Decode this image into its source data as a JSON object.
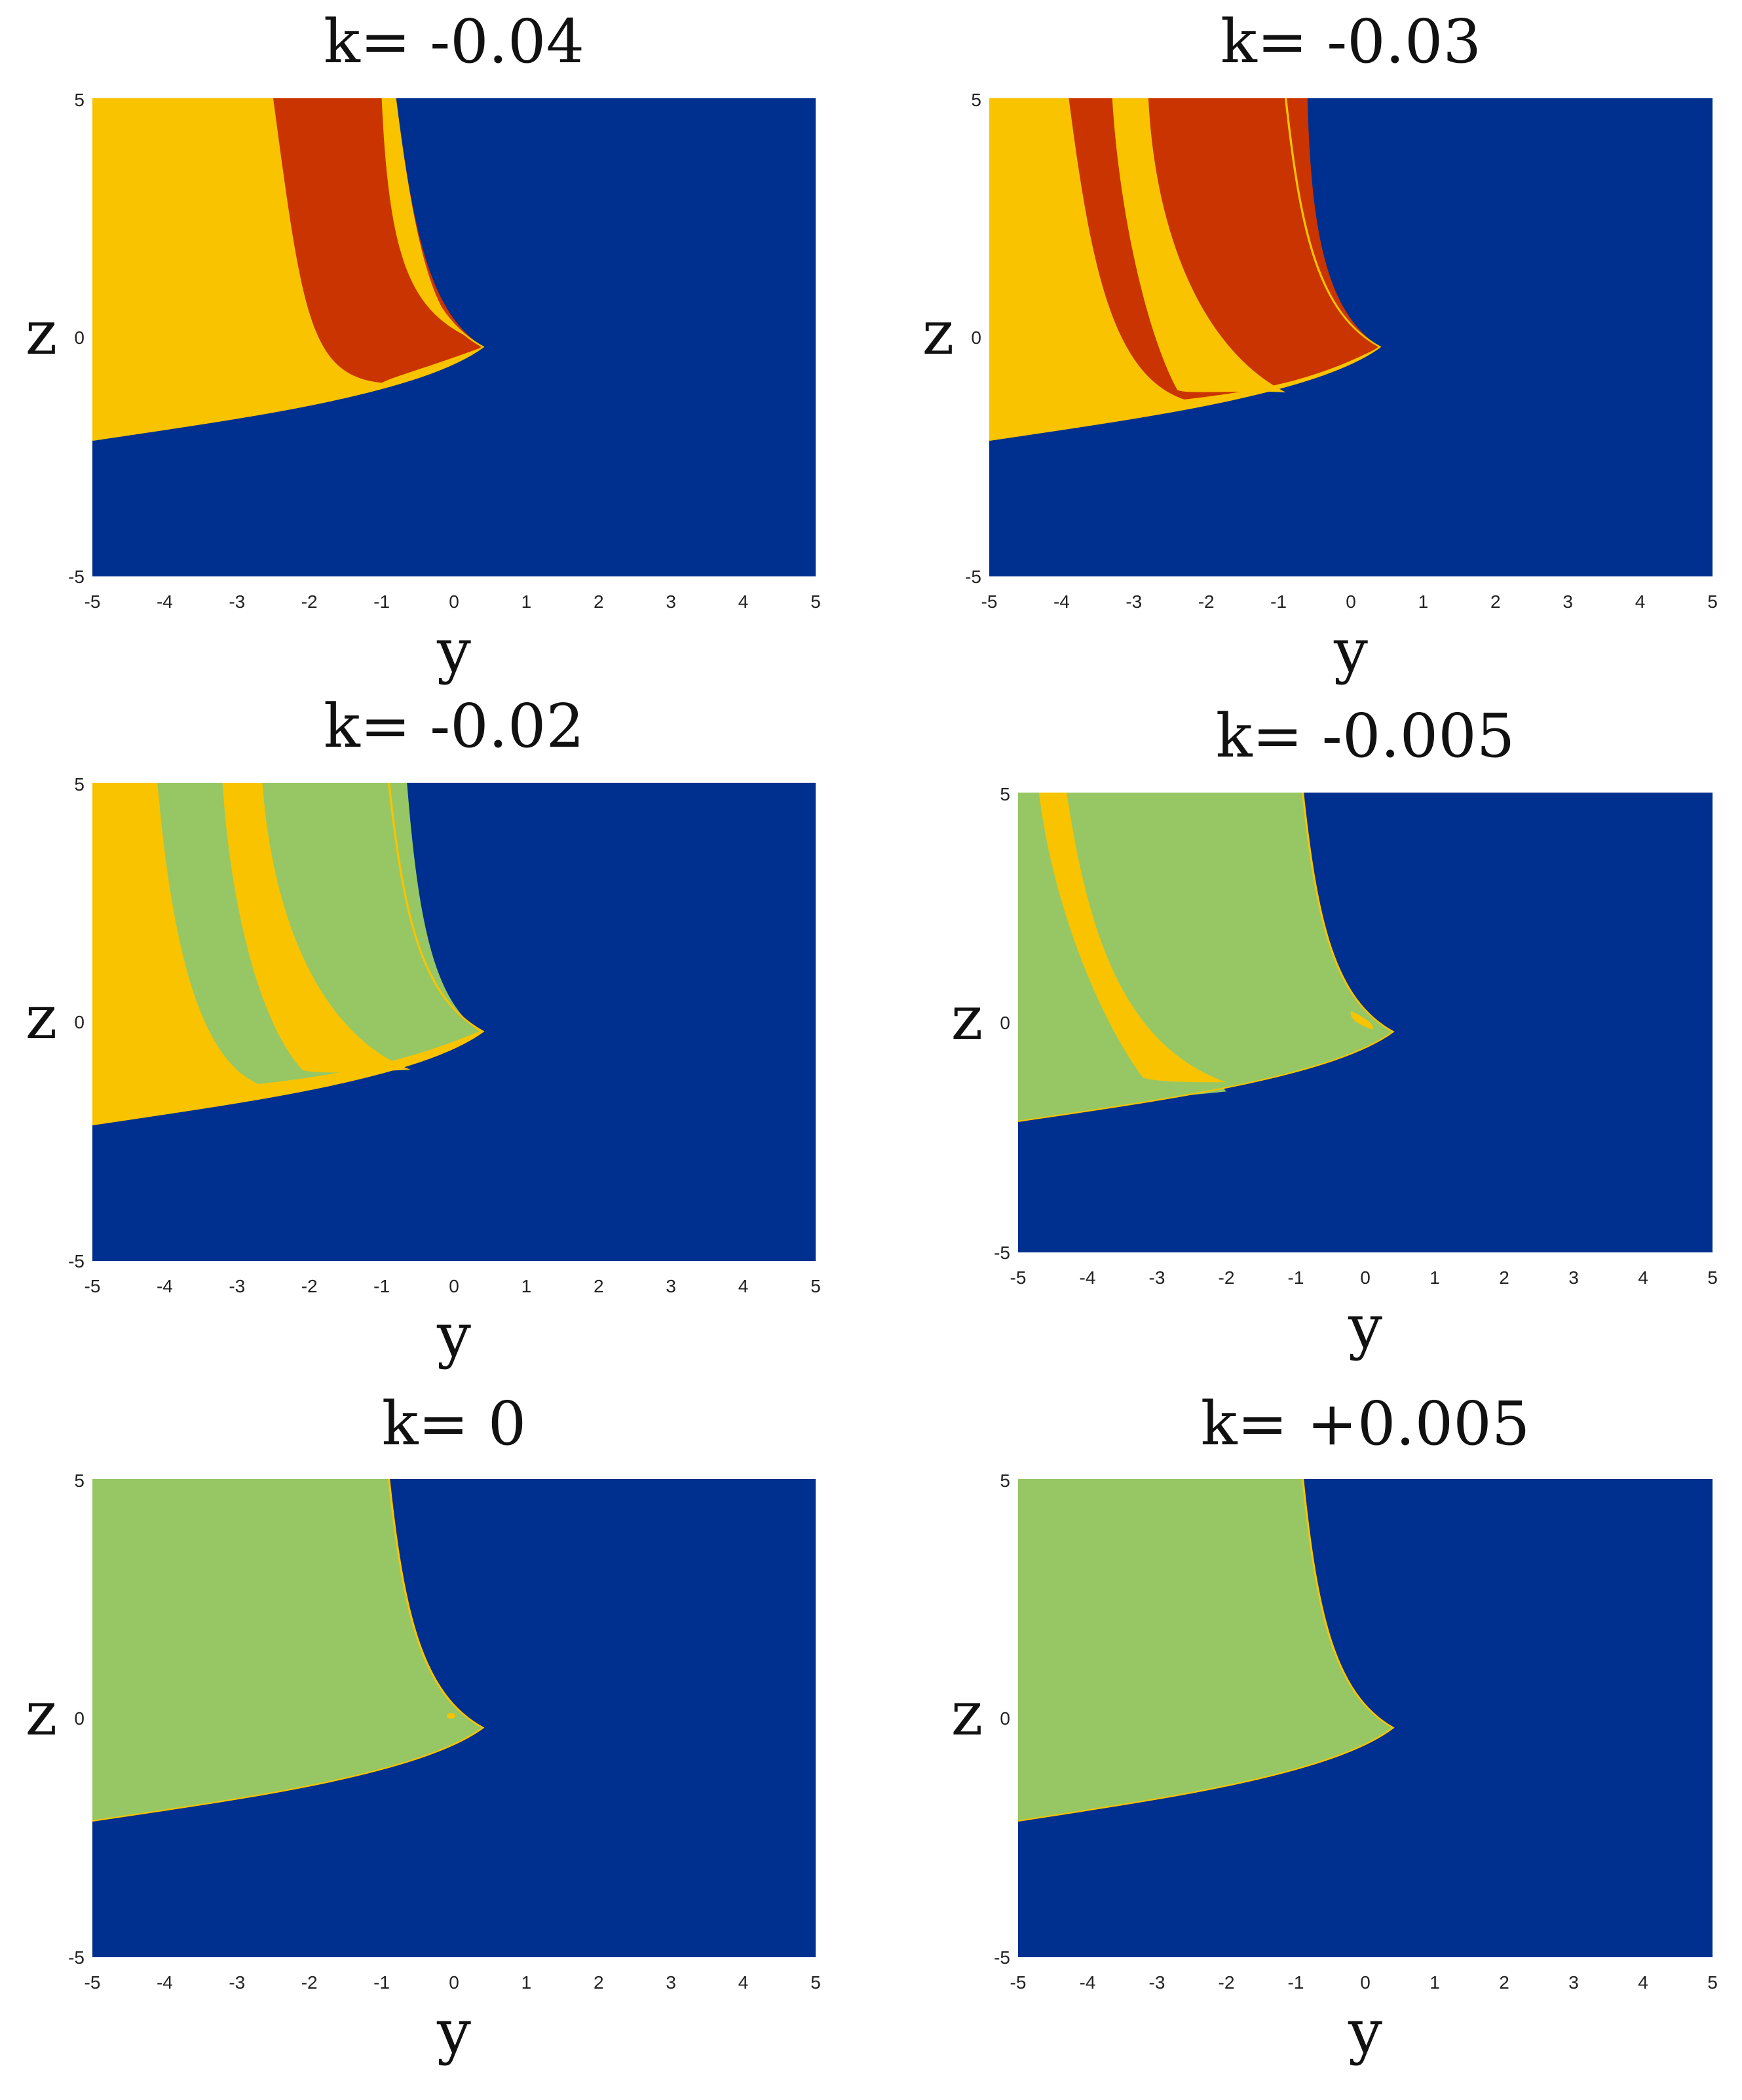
{
  "colors": {
    "blue": "#00308f",
    "yellow": "#f9c300",
    "red": "#c93400",
    "green": "#96c764"
  },
  "chart_data": [
    {
      "type": "heatmap",
      "title": "k= -0.04",
      "xlabel": "y",
      "ylabel": "z",
      "xlim": [
        -5,
        5
      ],
      "ylim": [
        -5,
        5
      ],
      "xticks": [
        "-5",
        "-4",
        "-3",
        "-2",
        "-1",
        "0",
        "1",
        "2",
        "3",
        "4",
        "5"
      ],
      "yticks": [
        "5",
        "0",
        "-5"
      ],
      "outer_region": "yellow",
      "bands": [
        "red",
        "yellow",
        "red"
      ]
    },
    {
      "type": "heatmap",
      "title": "k= -0.03",
      "xlabel": "y",
      "ylabel": "z",
      "xlim": [
        -5,
        5
      ],
      "ylim": [
        -5,
        5
      ],
      "xticks": [
        "-5",
        "-4",
        "-3",
        "-2",
        "-1",
        "0",
        "1",
        "2",
        "3",
        "4",
        "5"
      ],
      "yticks": [
        "5",
        "0",
        "-5"
      ],
      "outer_region": "yellow",
      "bands": [
        "red",
        "yellow",
        "red",
        "yellow"
      ]
    },
    {
      "type": "heatmap",
      "title": "k= -0.02",
      "xlabel": "y",
      "ylabel": "z",
      "xlim": [
        -5,
        5
      ],
      "ylim": [
        -5,
        5
      ],
      "xticks": [
        "-5",
        "-4",
        "-3",
        "-2",
        "-1",
        "0",
        "1",
        "2",
        "3",
        "4",
        "5"
      ],
      "yticks": [
        "5",
        "0",
        "-5"
      ],
      "outer_region": "yellow",
      "bands": [
        "green",
        "yellow",
        "green",
        "yellow"
      ]
    },
    {
      "type": "heatmap",
      "title": "k= -0.005",
      "xlabel": "y",
      "ylabel": "z",
      "xlim": [
        -5,
        5
      ],
      "ylim": [
        -5,
        5
      ],
      "xticks": [
        "-5",
        "-4",
        "-3",
        "-2",
        "-1",
        "0",
        "1",
        "2",
        "3",
        "4",
        "5"
      ],
      "yticks": [
        "5",
        "0",
        "-5"
      ],
      "outer_region": "green",
      "bands": [
        "yellow",
        "green",
        "yellow"
      ]
    },
    {
      "type": "heatmap",
      "title": "k= 0",
      "xlabel": "y",
      "ylabel": "z",
      "xlim": [
        -5,
        5
      ],
      "ylim": [
        -5,
        5
      ],
      "xticks": [
        "-5",
        "-4",
        "-3",
        "-2",
        "-1",
        "0",
        "1",
        "2",
        "3",
        "4",
        "5"
      ],
      "yticks": [
        "5",
        "0",
        "-5"
      ],
      "outer_region": "green",
      "bands": []
    },
    {
      "type": "heatmap",
      "title": "k= +0.005",
      "xlabel": "y",
      "ylabel": "z",
      "xlim": [
        -5,
        5
      ],
      "ylim": [
        -5,
        5
      ],
      "xticks": [
        "-5",
        "-4",
        "-3",
        "-2",
        "-1",
        "0",
        "1",
        "2",
        "3",
        "4",
        "5"
      ],
      "yticks": [
        "5",
        "0",
        "-5"
      ],
      "outer_region": "green",
      "bands": []
    }
  ]
}
